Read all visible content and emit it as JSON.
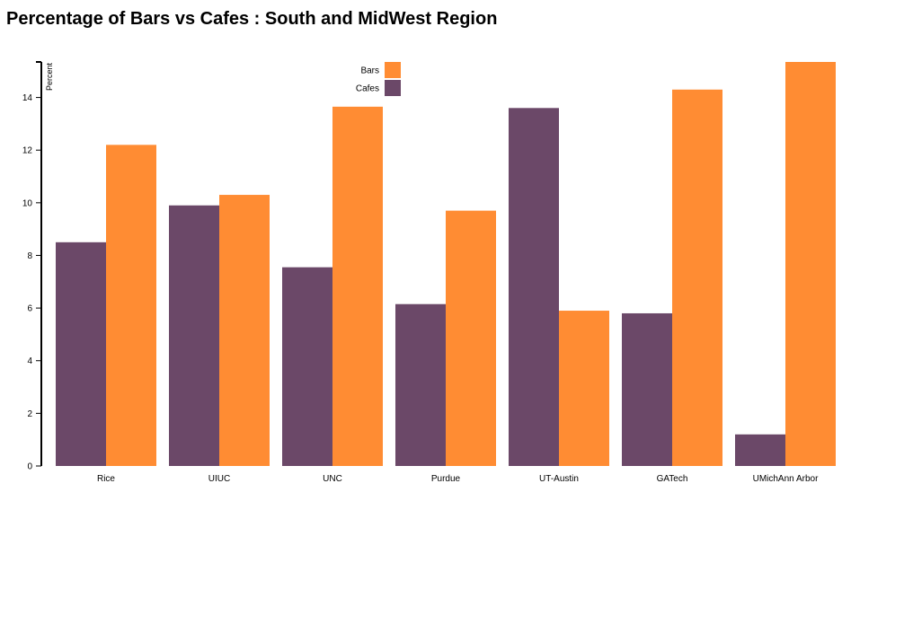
{
  "chart_data": {
    "type": "bar",
    "title": "Percentage of Bars vs Cafes : South and MidWest Region",
    "xlabel": "",
    "ylabel": "Percent",
    "categories": [
      "Rice",
      "UIUC",
      "UNC",
      "Purdue",
      "UT-Austin",
      "GATech",
      "UMichAnn Arbor"
    ],
    "series": [
      {
        "name": "Cafes",
        "color": "#6b4868",
        "values": [
          8.5,
          9.9,
          7.55,
          6.15,
          13.6,
          5.8,
          1.2
        ]
      },
      {
        "name": "Bars",
        "color": "#ff8c33",
        "values": [
          12.2,
          10.3,
          13.65,
          9.7,
          5.9,
          14.3,
          15.35
        ]
      }
    ],
    "ylim": [
      0,
      15.35
    ],
    "yticks": [
      0,
      2,
      4,
      6,
      8,
      10,
      12,
      14
    ],
    "legend_order": [
      "Bars",
      "Cafes"
    ],
    "legend_position": "top-center",
    "grid": false
  }
}
